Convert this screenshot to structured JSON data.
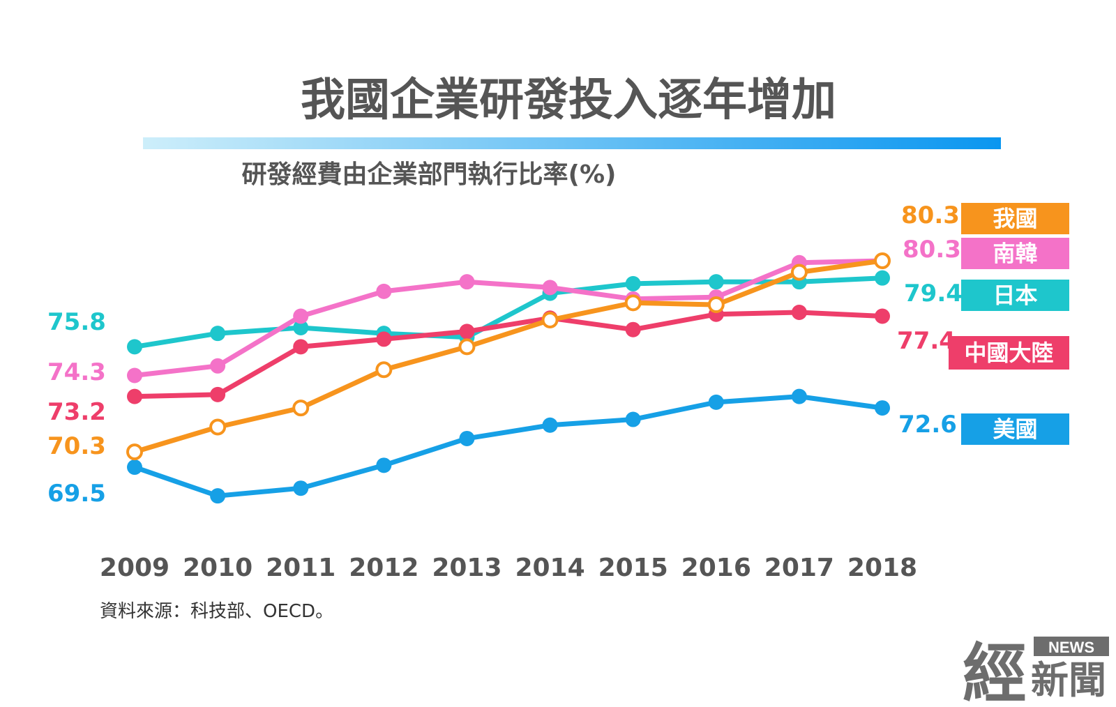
{
  "header": {
    "title": "我國企業研發投入逐年增加",
    "subtitle": "研發經費由企業部門執行比率(%)"
  },
  "source": "資料來源：科技部、OECD。",
  "logo": {
    "news": "NEWS",
    "main": "經",
    "sub": "新聞"
  },
  "colors": {
    "title_bar_start": "#cdeefa",
    "title_bar_end": "#0a96f0"
  },
  "chart_data": {
    "type": "line",
    "title": "研發經費由企業部門執行比率(%)",
    "xlabel": "",
    "ylabel": "",
    "ylim": [
      66,
      83
    ],
    "grid": false,
    "categories": [
      "2009",
      "2010",
      "2011",
      "2012",
      "2013",
      "2014",
      "2015",
      "2016",
      "2017",
      "2018"
    ],
    "series": [
      {
        "id": "taiwan",
        "name": "我國",
        "color": "#f7941d",
        "marker": "hollow",
        "values": [
          70.3,
          71.6,
          72.6,
          74.6,
          75.8,
          77.2,
          78.1,
          78.0,
          79.7,
          80.3
        ],
        "start_label": "70.3",
        "end_label": "80.3"
      },
      {
        "id": "korea",
        "name": "南韓",
        "color": "#f472c8",
        "marker": "filled",
        "values": [
          74.3,
          74.8,
          77.4,
          78.7,
          79.2,
          78.9,
          78.3,
          78.4,
          80.2,
          80.3
        ],
        "start_label": "74.3",
        "end_label": "80.3"
      },
      {
        "id": "japan",
        "name": "日本",
        "color": "#1ec6cc",
        "marker": "filled",
        "values": [
          75.8,
          76.5,
          76.8,
          76.5,
          76.3,
          78.6,
          79.1,
          79.2,
          79.2,
          79.4
        ],
        "start_label": "75.8",
        "end_label": "79.4"
      },
      {
        "id": "china",
        "name": "中國大陸",
        "color": "#ee3e6a",
        "marker": "filled",
        "values": [
          73.2,
          73.3,
          75.8,
          76.2,
          76.6,
          77.3,
          76.7,
          77.5,
          77.6,
          77.4
        ],
        "start_label": "73.2",
        "end_label": "77.4"
      },
      {
        "id": "usa",
        "name": "美國",
        "color": "#16a0e6",
        "marker": "filled",
        "values": [
          69.5,
          68.0,
          68.4,
          69.6,
          71.0,
          71.7,
          72.0,
          72.9,
          73.2,
          72.6
        ],
        "start_label": "69.5",
        "end_label": "72.6"
      }
    ]
  }
}
